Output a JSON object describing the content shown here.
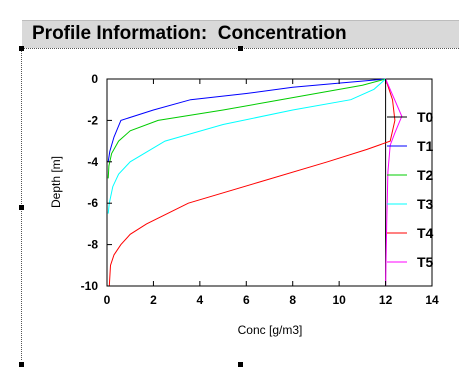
{
  "window": {
    "title": "Profile Information:  Concentration"
  },
  "chart_data": {
    "type": "line",
    "xlabel": "Conc [g/m3]",
    "ylabel": "Depth [m]",
    "xlim": [
      0,
      14
    ],
    "ylim": [
      -10,
      0
    ],
    "xticks": [
      0,
      2,
      4,
      6,
      8,
      10,
      12,
      14
    ],
    "yticks": [
      0,
      -2,
      -4,
      -6,
      -8,
      -10
    ],
    "grid": false,
    "legend_position": "right",
    "series": [
      {
        "name": "T0",
        "color": "#000000",
        "x": [
          12.0,
          12.0
        ],
        "y": [
          0.0,
          -10.0
        ]
      },
      {
        "name": "T1",
        "color": "#0000ff",
        "x": [
          12.0,
          10.0,
          8.0,
          6.0,
          3.6,
          2.0,
          0.6,
          0.3,
          0.12,
          0.05
        ],
        "y": [
          0.0,
          -0.2,
          -0.4,
          -0.7,
          -1.0,
          -1.5,
          -2.0,
          -2.8,
          -3.5,
          -4.0
        ]
      },
      {
        "name": "T2",
        "color": "#00cc00",
        "x": [
          12.0,
          11.0,
          9.0,
          7.0,
          5.0,
          2.2,
          1.0,
          0.5,
          0.2,
          0.08,
          0.05
        ],
        "y": [
          0.0,
          -0.3,
          -0.7,
          -1.1,
          -1.5,
          -2.0,
          -2.5,
          -3.0,
          -3.6,
          -4.2,
          -4.8
        ]
      },
      {
        "name": "T3",
        "color": "#00ffff",
        "x": [
          12.0,
          11.5,
          10.5,
          8.0,
          5.0,
          2.5,
          1.0,
          0.5,
          0.25,
          0.1,
          0.05
        ],
        "y": [
          0.0,
          -0.5,
          -1.0,
          -1.5,
          -2.2,
          -3.0,
          -4.0,
          -4.6,
          -5.2,
          -6.0,
          -6.5
        ]
      },
      {
        "name": "T4",
        "color": "#ff0000",
        "x": [
          12.0,
          12.3,
          12.4,
          12.2,
          11.2,
          9.5,
          6.5,
          3.5,
          1.7,
          1.0,
          0.6,
          0.3,
          0.15,
          0.1
        ],
        "y": [
          0.0,
          -1.0,
          -2.0,
          -3.0,
          -3.4,
          -4.0,
          -5.0,
          -6.0,
          -7.0,
          -7.5,
          -8.0,
          -8.5,
          -9.0,
          -10.0
        ]
      },
      {
        "name": "T5",
        "color": "#ff00ff",
        "x": [
          12.0,
          12.35,
          12.7,
          12.4,
          12.2,
          12.1,
          12.05,
          12.0
        ],
        "y": [
          0.0,
          -0.9,
          -1.8,
          -2.6,
          -3.2,
          -4.5,
          -7.0,
          -10.0
        ]
      }
    ]
  }
}
